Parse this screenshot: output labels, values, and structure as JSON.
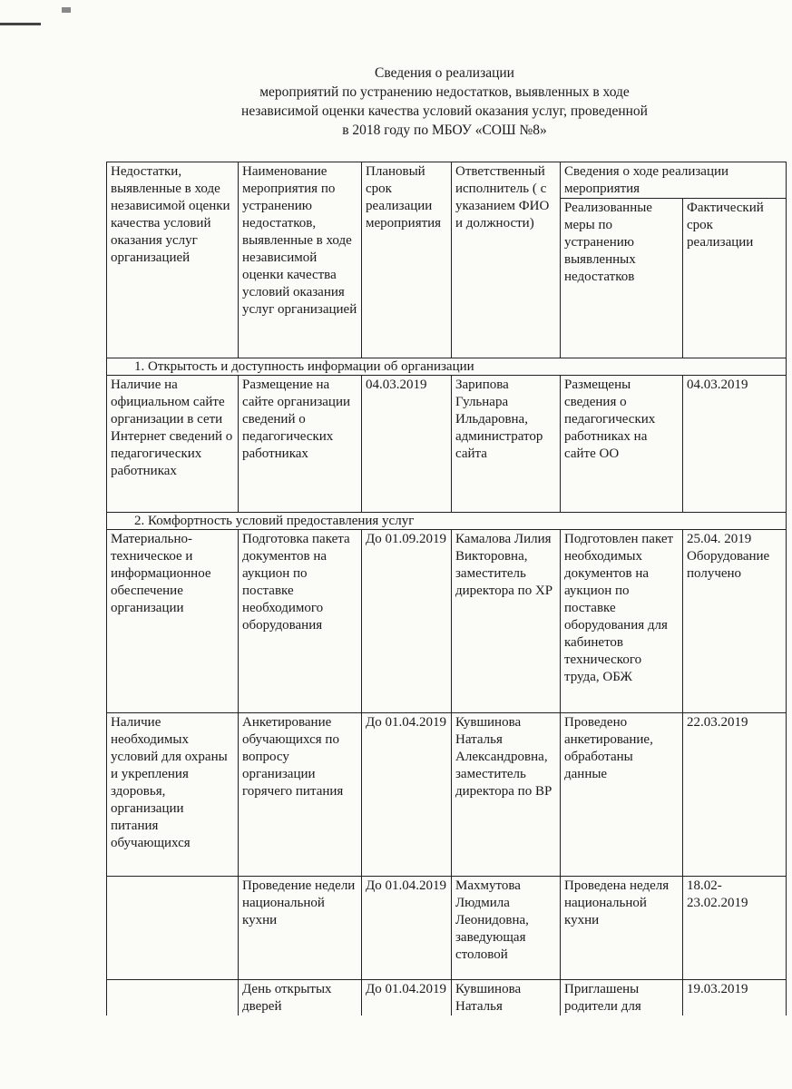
{
  "title": {
    "lines": [
      "Сведения о реализации",
      "мероприятий по устранению недостатков, выявленных в ходе",
      "независимой оценки качества условий оказания услуг, проведенной",
      "в 2018 году по МБОУ «СОШ №8»"
    ]
  },
  "table": {
    "headers": {
      "col1": "Недостатки, выявленные в ходе независимой оценки качества условий оказания услуг организацией",
      "col2": "Наименование мероприятия по устранению недостатков, выявленные в ходе независимой оценки качества условий оказания услуг организацией",
      "col3": "Плановый срок реализации мероприятия",
      "col4": "Ответственный исполнитель ( с указанием ФИО и должности)",
      "group": "Сведения о ходе реализации мероприятия",
      "col5": "Реализованные меры по устранению выявленных недостатков",
      "col6": "Фактический срок реализации"
    },
    "sections": [
      {
        "label": "1.   Открытость и доступность информации об организации",
        "rows": [
          [
            "Наличие на официальном сайте организации в сети Интернет сведений о педагогических работниках",
            "Размещение на сайте организации сведений о педагогических работниках",
            "04.03.2019",
            "Зарипова Гульнара Ильдаровна, администратор сайта",
            "Размещены сведения о педагогических работниках на сайте ОО",
            "04.03.2019"
          ]
        ]
      },
      {
        "label": "2.   Комфортность условий предоставления услуг",
        "rows": [
          [
            "Материально-техническое и информационное обеспечение организации",
            "Подготовка пакета документов на аукцион по поставке необходимого оборудования",
            "До 01.09.2019",
            "Камалова Лилия Викторовна, заместитель директора по ХР",
            "Подготовлен пакет необходимых документов на аукцион по поставке оборудования для кабинетов технического труда, ОБЖ",
            "25.04. 2019 Оборудование получено"
          ],
          [
            "Наличие необходимых условий для охраны и укрепления здоровья, организации питания обучающихся",
            "Анкетирование обучающихся по вопросу организации горячего питания",
            "До 01.04.2019",
            "Кувшинова Наталья Александровна, заместитель директора по ВР",
            "Проведено анкетирование, обработаны данные",
            "22.03.2019"
          ],
          [
            "",
            "Проведение недели национальной кухни",
            "До 01.04.2019",
            "Махмутова Людмила Леонидовна, заведующая столовой",
            "Проведена неделя национальной кухни",
            "18.02-23.02.2019"
          ],
          [
            "",
            "День открытых дверей",
            "До 01.04.2019",
            "Кувшинова Наталья",
            "Приглашены родители для",
            "19.03.2019"
          ]
        ]
      }
    ]
  }
}
